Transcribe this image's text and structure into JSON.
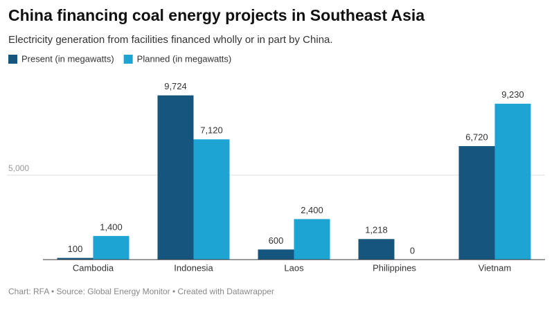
{
  "chart_data": {
    "type": "bar",
    "title": "China financing coal energy projects in Southeast Asia",
    "subtitle": "Electricity generation from facilities financed wholly or in part by China.",
    "footer": "Chart: RFA • Source: Global Energy Monitor • Created with Datawrapper",
    "categories": [
      "Cambodia",
      "Indonesia",
      "Laos",
      "Philippines",
      "Vietnam"
    ],
    "series": [
      {
        "name": "Present (in megawatts)",
        "color": "#15557e",
        "values": [
          100,
          9724,
          600,
          1218,
          6720
        ],
        "value_labels": [
          "100",
          "9,724",
          "600",
          "1,218",
          "6,720"
        ]
      },
      {
        "name": "Planned (in megawatts)",
        "color": "#1ea4d3",
        "values": [
          1400,
          7120,
          2400,
          0,
          9230
        ],
        "value_labels": [
          "1,400",
          "7,120",
          "2,400",
          "0",
          "9,230"
        ]
      }
    ],
    "ylim": [
      0,
      10000
    ],
    "yticks": [
      {
        "value": 5000,
        "label": "5,000"
      }
    ],
    "grid": true
  }
}
